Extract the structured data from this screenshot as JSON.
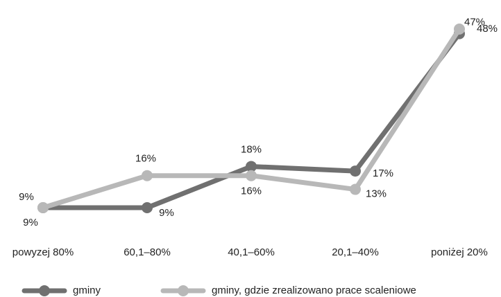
{
  "chart_data": {
    "type": "line",
    "categories": [
      "powyzej 80%",
      "60,1–80%",
      "40,1–60%",
      "20,1–40%",
      "poniżej 20%"
    ],
    "series": [
      {
        "name": "gminy",
        "color": "#707070",
        "values": [
          9,
          9,
          18,
          17,
          47
        ],
        "value_labels": [
          "9%",
          "9%",
          "18%",
          "17%",
          "47%"
        ]
      },
      {
        "name": "gminy, gdzie zrealizowano prace scaleniowe",
        "color": "#b8b8b8",
        "values": [
          9,
          16,
          16,
          13,
          48
        ],
        "value_labels": [
          "9%",
          "16%",
          "16%",
          "13%",
          "48%"
        ]
      }
    ]
  }
}
